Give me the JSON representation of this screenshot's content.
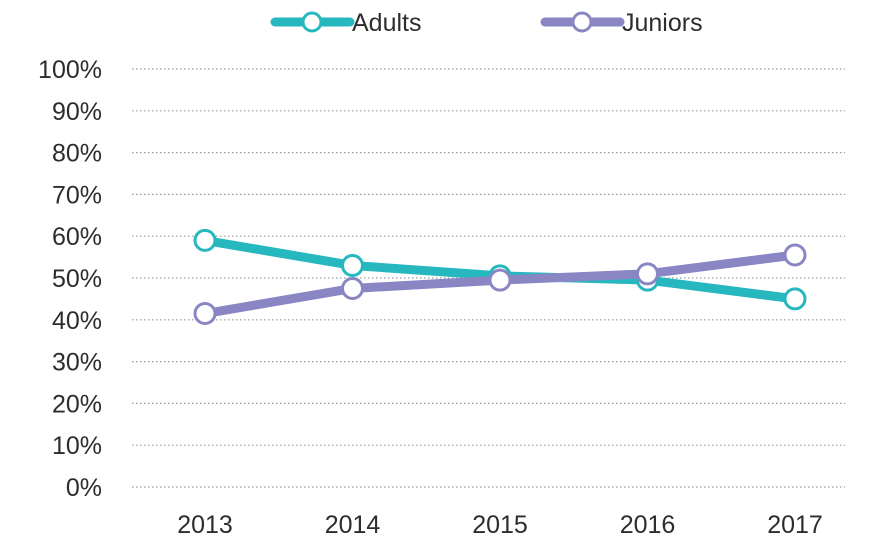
{
  "chart_data": {
    "type": "line",
    "title": "",
    "xlabel": "",
    "ylabel": "",
    "categories": [
      "2013",
      "2014",
      "2015",
      "2016",
      "2017"
    ],
    "ylim": [
      0,
      100
    ],
    "yticks": [
      "0%",
      "10%",
      "20%",
      "30%",
      "40%",
      "50%",
      "60%",
      "70%",
      "80%",
      "90%",
      "100%"
    ],
    "grid": true,
    "legend_position": "top",
    "series": [
      {
        "name": "Adults",
        "color": "#26b7bf",
        "values": [
          59,
          53,
          50.5,
          49.5,
          45
        ]
      },
      {
        "name": "Juniors",
        "color": "#8a86c4",
        "values": [
          41.5,
          47.5,
          49.5,
          51,
          55.5
        ]
      }
    ]
  }
}
